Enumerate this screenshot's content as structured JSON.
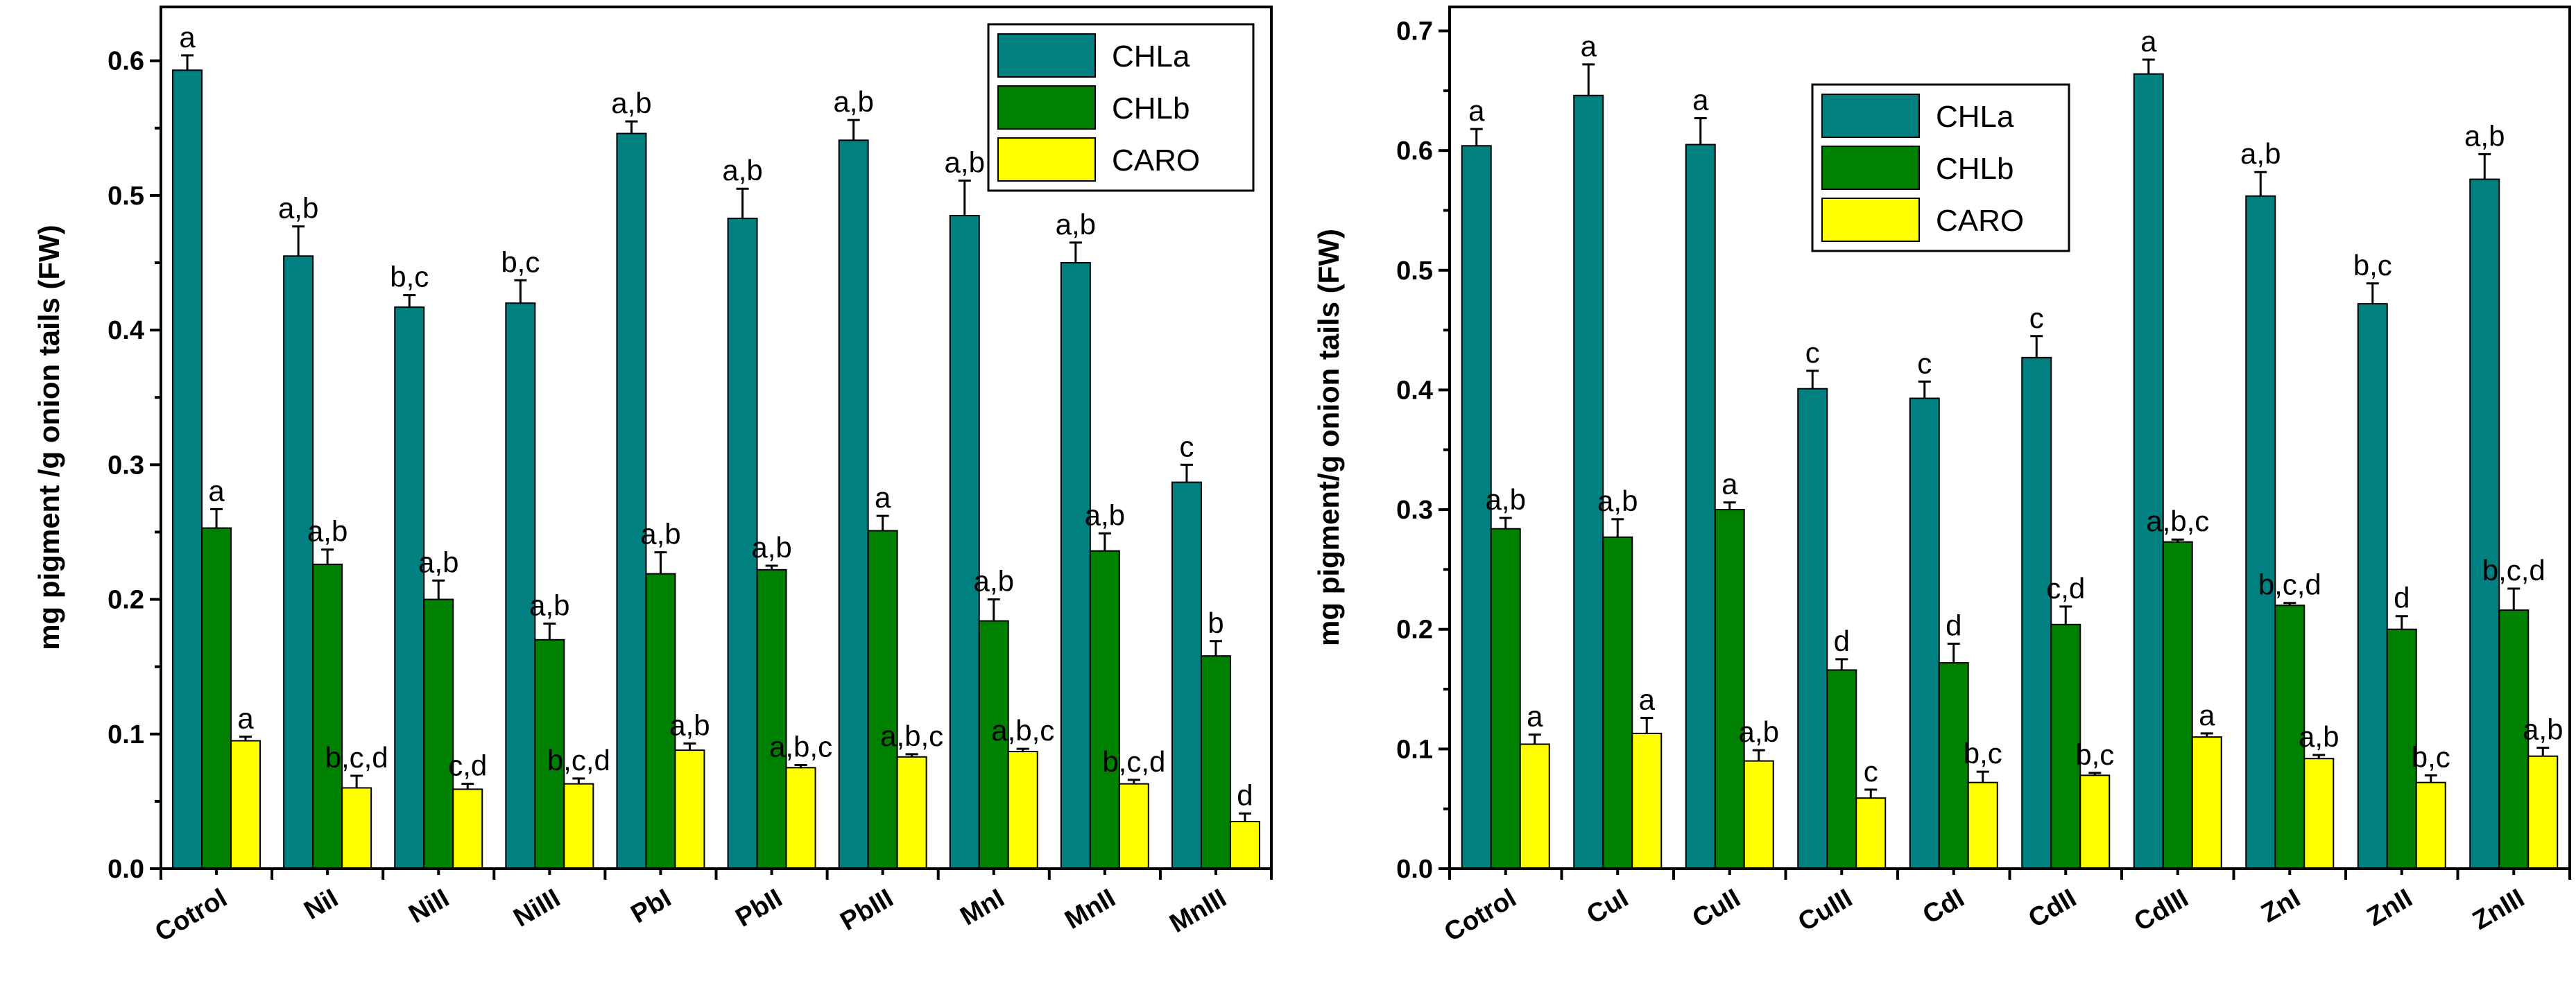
{
  "chart_data": [
    {
      "type": "bar",
      "ylabel": "mg pigment /g onion tails (FW)",
      "ylim": [
        0,
        0.64
      ],
      "yticks": [
        "0.0",
        "0.1",
        "0.2",
        "0.3",
        "0.4",
        "0.5",
        "0.6"
      ],
      "legend_position": "top-right",
      "categories": [
        "Cotrol",
        "NiI",
        "NiII",
        "NiIII",
        "PbI",
        "PbII",
        "PbIII",
        "MnI",
        "MnII",
        "MnIII"
      ],
      "series": [
        {
          "name": "CHLa",
          "color": "#008080",
          "values": [
            0.593,
            0.455,
            0.417,
            0.42,
            0.546,
            0.483,
            0.541,
            0.485,
            0.45,
            0.287
          ],
          "errors": [
            0.011,
            0.022,
            0.009,
            0.017,
            0.009,
            0.022,
            0.015,
            0.026,
            0.015,
            0.013
          ],
          "labels": [
            "a",
            "a,b",
            "b,c",
            "b,c",
            "a,b",
            "a,b",
            "a,b",
            "a,b",
            "a,b",
            "c"
          ]
        },
        {
          "name": "CHLb",
          "color": "#008000",
          "values": [
            0.253,
            0.226,
            0.2,
            0.17,
            0.219,
            0.222,
            0.251,
            0.184,
            0.236,
            0.158
          ],
          "errors": [
            0.014,
            0.011,
            0.014,
            0.012,
            0.016,
            0.003,
            0.011,
            0.016,
            0.013,
            0.011
          ],
          "labels": [
            "a",
            "a,b",
            "a,b",
            "a,b",
            "a,b",
            "a,b",
            "a",
            "a,b",
            "a,b",
            "b"
          ]
        },
        {
          "name": "CARO",
          "color": "#ffff00",
          "values": [
            0.095,
            0.06,
            0.059,
            0.063,
            0.088,
            0.075,
            0.083,
            0.087,
            0.063,
            0.035
          ],
          "errors": [
            0.003,
            0.009,
            0.004,
            0.004,
            0.005,
            0.002,
            0.002,
            0.002,
            0.003,
            0.006
          ],
          "labels": [
            "a",
            "b,c,d",
            "c,d",
            "b,c,d",
            "a,b",
            "a,b,c",
            "a,b,c",
            "a,b,c",
            "b,c,d",
            "d"
          ]
        }
      ]
    },
    {
      "type": "bar",
      "ylabel": "mg pigment/g onion tails (FW)",
      "ylim": [
        0,
        0.72
      ],
      "yticks": [
        "0.0",
        "0.1",
        "0.2",
        "0.3",
        "0.4",
        "0.5",
        "0.6",
        "0.7"
      ],
      "legend_position": "top-center",
      "categories": [
        "Cotrol",
        "CuI",
        "CuII",
        "CuIII",
        "CdI",
        "CdII",
        "CdIII",
        "ZnI",
        "ZnII",
        "ZnIII"
      ],
      "series": [
        {
          "name": "CHLa",
          "color": "#008080",
          "values": [
            0.604,
            0.646,
            0.605,
            0.401,
            0.393,
            0.427,
            0.664,
            0.562,
            0.472,
            0.576
          ],
          "errors": [
            0.014,
            0.026,
            0.022,
            0.015,
            0.014,
            0.018,
            0.012,
            0.02,
            0.017,
            0.021
          ],
          "labels": [
            "a",
            "a",
            "a",
            "c",
            "c",
            "c",
            "a",
            "a,b",
            "b,c",
            "a,b"
          ]
        },
        {
          "name": "CHLb",
          "color": "#008000",
          "values": [
            0.284,
            0.277,
            0.3,
            0.166,
            0.172,
            0.204,
            0.273,
            0.22,
            0.2,
            0.216
          ],
          "errors": [
            0.009,
            0.015,
            0.006,
            0.009,
            0.016,
            0.015,
            0.002,
            0.002,
            0.011,
            0.018
          ],
          "labels": [
            "a,b",
            "a,b",
            "a",
            "d",
            "d",
            "c,d",
            "a,b,c",
            "b,c,d",
            "d",
            "b,c,d"
          ]
        },
        {
          "name": "CARO",
          "color": "#ffff00",
          "values": [
            0.104,
            0.113,
            0.09,
            0.059,
            0.072,
            0.078,
            0.11,
            0.092,
            0.072,
            0.094
          ],
          "errors": [
            0.008,
            0.013,
            0.009,
            0.007,
            0.009,
            0.002,
            0.003,
            0.003,
            0.006,
            0.007
          ],
          "labels": [
            "a",
            "a",
            "a,b",
            "c",
            "b,c",
            "b,c",
            "a",
            "a,b",
            "b,c",
            "a,b"
          ]
        }
      ]
    }
  ]
}
